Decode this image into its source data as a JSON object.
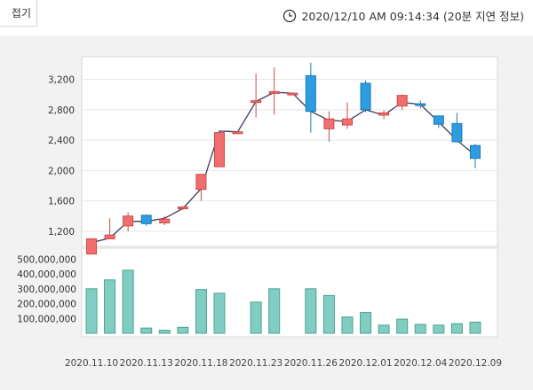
{
  "header": {
    "fold_label": "접기",
    "timestamp": "2020/12/10 AM 09:14:34 (20분 지연 정보)"
  },
  "chart_data": [
    {
      "type": "candlestick",
      "up_color": "#f26e6e",
      "down_color": "#2e9ce0",
      "ylim": [
        1000,
        3500
      ],
      "yticks": [
        1200,
        1600,
        2000,
        2400,
        2800,
        3200
      ],
      "ytick_labels": [
        "1,200",
        "1,600",
        "2,000",
        "2,400",
        "2,800",
        "3,200"
      ],
      "candles": [
        {
          "open": 900,
          "close": 1100,
          "high": 1100,
          "low": 900
        },
        {
          "open": 1100,
          "close": 1150,
          "high": 1370,
          "low": 1100
        },
        {
          "open": 1270,
          "close": 1400,
          "high": 1450,
          "low": 1200
        },
        {
          "open": 1410,
          "close": 1300,
          "high": 1420,
          "low": 1270
        },
        {
          "open": 1310,
          "close": 1360,
          "high": 1400,
          "low": 1280
        },
        {
          "open": 1500,
          "close": 1520,
          "high": 1530,
          "low": 1480
        },
        {
          "open": 1750,
          "close": 1950,
          "high": 1950,
          "low": 1600
        },
        {
          "open": 2050,
          "close": 2500,
          "high": 2500,
          "low": 2050
        },
        {
          "open": 2500,
          "close": 2510,
          "high": 2510,
          "low": 2500
        },
        {
          "open": 2910,
          "close": 2920,
          "high": 3280,
          "low": 2700
        },
        {
          "open": 3020,
          "close": 3040,
          "high": 3360,
          "low": 2740
        },
        {
          "open": 3020,
          "close": 3020,
          "high": 3020,
          "low": 3020
        },
        {
          "open": 3250,
          "close": 2780,
          "high": 3420,
          "low": 2500
        },
        {
          "open": 2550,
          "close": 2680,
          "high": 2780,
          "low": 2380
        },
        {
          "open": 2600,
          "close": 2680,
          "high": 2900,
          "low": 2550
        },
        {
          "open": 3150,
          "close": 2800,
          "high": 3190,
          "low": 2770
        },
        {
          "open": 2730,
          "close": 2760,
          "high": 2790,
          "low": 2680
        },
        {
          "open": 2850,
          "close": 2990,
          "high": 3000,
          "low": 2800
        },
        {
          "open": 2880,
          "close": 2860,
          "high": 2920,
          "low": 2820
        },
        {
          "open": 2720,
          "close": 2610,
          "high": 2720,
          "low": 2560
        },
        {
          "open": 2620,
          "close": 2380,
          "high": 2760,
          "low": 2370
        },
        {
          "open": 2330,
          "close": 2160,
          "high": 2350,
          "low": 2030
        }
      ],
      "line_close": [
        1050,
        1110,
        1330,
        1330,
        1370,
        1500,
        1760,
        2520,
        2510,
        2910,
        3030,
        3020,
        2780,
        2660,
        2650,
        2800,
        2730,
        2900,
        2870,
        2640,
        2400,
        2200
      ]
    },
    {
      "type": "bar",
      "ylim": [
        0,
        550000000
      ],
      "yticks": [
        100000000,
        200000000,
        300000000,
        400000000,
        500000000
      ],
      "ytick_labels": [
        "100,000,000",
        "200,000,000",
        "300,000,000",
        "400,000,000",
        "500,000,000"
      ],
      "values": [
        300000000,
        360000000,
        425000000,
        35000000,
        20000000,
        40000000,
        295000000,
        270000000,
        null,
        210000000,
        300000000,
        null,
        300000000,
        255000000,
        110000000,
        140000000,
        55000000,
        95000000,
        60000000,
        55000000,
        65000000,
        75000000
      ],
      "bar_color": "#82cdc1",
      "x_labels": [
        "2020.11.10",
        "2020.11.13",
        "2020.11.18",
        "2020.11.23",
        "2020.11.26",
        "2020.12.01",
        "2020.12.04",
        "2020.12.09"
      ]
    }
  ]
}
